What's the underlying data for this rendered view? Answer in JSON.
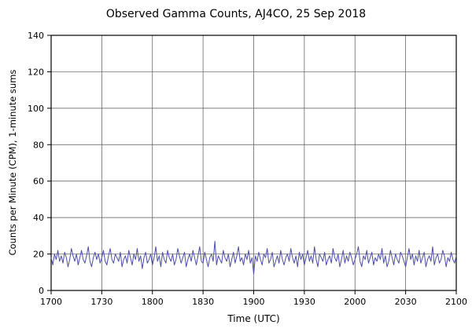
{
  "chart_data": {
    "type": "line",
    "title": "Observed Gamma Counts, AJ4CO, 25 Sep 2018",
    "xlabel": "Time (UTC)",
    "ylabel": "Counts per Minute (CPM), 1-minute sums",
    "x_ticks": [
      "1700",
      "1730",
      "1800",
      "1830",
      "1900",
      "1930",
      "2000",
      "2030",
      "2100"
    ],
    "y_ticks": [
      0,
      20,
      40,
      60,
      80,
      100,
      120,
      140
    ],
    "ylim": [
      0,
      140
    ],
    "x_range_minutes": [
      0,
      240
    ],
    "x_step_minutes": 1,
    "grid": true,
    "legend": "none",
    "line_color": "#4d4da8",
    "values": [
      18,
      14,
      20,
      17,
      22,
      16,
      19,
      15,
      21,
      18,
      13,
      17,
      23,
      19,
      16,
      20,
      14,
      18,
      22,
      17,
      15,
      19,
      24,
      16,
      13,
      18,
      21,
      17,
      20,
      15,
      18,
      22,
      16,
      14,
      19,
      23,
      17,
      15,
      20,
      18,
      16,
      21,
      13,
      17,
      19,
      15,
      22,
      18,
      14,
      20,
      17,
      23,
      16,
      19,
      12,
      18,
      21,
      15,
      17,
      20,
      14,
      18,
      24,
      16,
      19,
      13,
      21,
      17,
      15,
      22,
      18,
      16,
      20,
      14,
      17,
      23,
      19,
      15,
      18,
      21,
      13,
      17,
      20,
      16,
      22,
      18,
      14,
      19,
      24,
      16,
      15,
      21,
      17,
      13,
      18,
      20,
      16,
      27,
      14,
      19,
      17,
      15,
      22,
      18,
      16,
      20,
      13,
      17,
      21,
      15,
      19,
      24,
      16,
      18,
      14,
      20,
      17,
      22,
      15,
      18,
      9,
      19,
      16,
      21,
      17,
      14,
      20,
      18,
      23,
      15,
      17,
      21,
      13,
      16,
      19,
      15,
      22,
      17,
      14,
      18,
      20,
      16,
      23,
      18,
      15,
      19,
      13,
      21,
      17,
      20,
      14,
      18,
      22,
      16,
      19,
      15,
      24,
      17,
      13,
      20,
      18,
      16,
      21,
      14,
      17,
      19,
      15,
      23,
      18,
      16,
      20,
      13,
      17,
      22,
      15,
      19,
      16,
      21,
      18,
      14,
      17,
      20,
      24,
      16,
      13,
      19,
      17,
      22,
      15,
      18,
      21,
      14,
      18,
      16,
      20,
      17,
      23,
      15,
      19,
      13,
      16,
      22,
      18,
      14,
      20,
      17,
      15,
      21,
      19,
      16,
      13,
      18,
      23,
      17,
      20,
      14,
      19,
      16,
      22,
      15,
      18,
      21,
      13,
      17,
      19,
      16,
      24,
      14,
      18,
      20,
      15,
      17,
      22,
      19,
      13,
      18,
      16,
      21,
      17,
      15,
      19
    ]
  }
}
